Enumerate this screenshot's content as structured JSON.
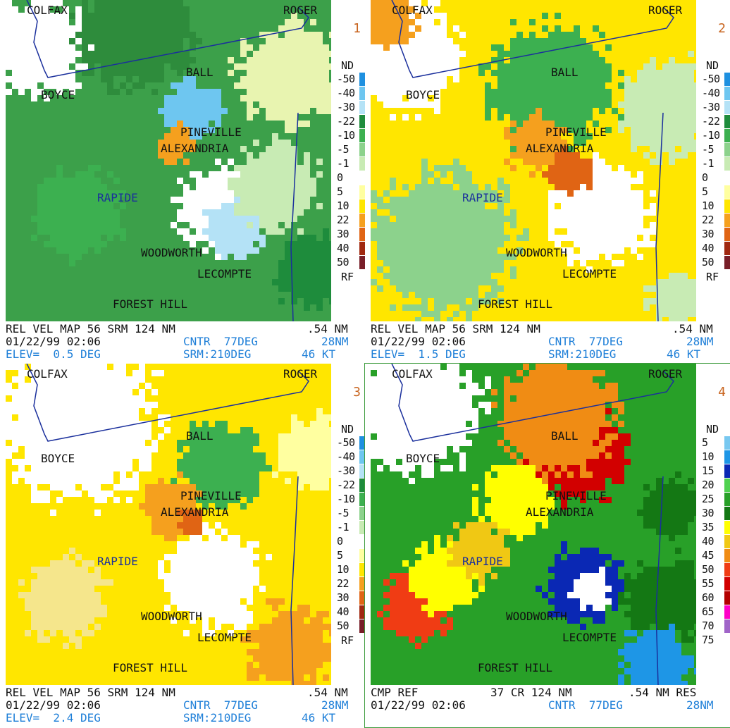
{
  "panels": [
    {
      "id": "1",
      "type": "velocity",
      "number": "1",
      "line1": {
        "a": "REL VEL MAP 56 SRM 124 NM",
        "b": ".54 NM"
      },
      "line2": {
        "a": "01/22/99 02:06",
        "b": "CNTR  77DEG",
        "c": "28NM"
      },
      "line3": {
        "a": "ELEV=  0.5 DEG",
        "b": "SRM:210DEG",
        "c": "46 KT"
      }
    },
    {
      "id": "2",
      "type": "velocity",
      "number": "2",
      "line1": {
        "a": "REL VEL MAP 56 SRM 124 NM",
        "b": ".54 NM"
      },
      "line2": {
        "a": "01/22/99 02:06",
        "b": "CNTR  77DEG",
        "c": "28NM"
      },
      "line3": {
        "a": "ELEV=  1.5 DEG",
        "b": "SRM:210DEG",
        "c": "46 KT"
      }
    },
    {
      "id": "3",
      "type": "velocity",
      "number": "3",
      "line1": {
        "a": "REL VEL MAP 56 SRM 124 NM",
        "b": ".54 NM"
      },
      "line2": {
        "a": "01/22/99 02:06",
        "b": "CNTR  77DEG",
        "c": "28NM"
      },
      "line3": {
        "a": "ELEV=  2.4 DEG",
        "b": "SRM:210DEG",
        "c": "46 KT"
      }
    },
    {
      "id": "4",
      "type": "reflectivity",
      "number": "4",
      "line1": {
        "a": "CMP REF",
        "b": "37 CR 124 NM",
        "c": ".54 NM RES"
      },
      "line2": {
        "a": "01/22/99 02:06",
        "b": "CNTR  77DEG",
        "c": "28NM"
      },
      "line3": null
    }
  ],
  "places": {
    "colfax": "COLFAX",
    "roger": "ROGER",
    "ball": "BALL",
    "boyce": "BOYCE",
    "pineville": "PINEVILLE",
    "alexandria": "ALEXANDRIA",
    "rapide": "RAPIDE",
    "woodworth": "WOODWORTH",
    "lecompte": "LECOMPTE",
    "forest_hill": "FOREST HILL"
  },
  "velocity_legend": {
    "head": "ND",
    "foot": "RF",
    "rows": [
      {
        "label": "-50",
        "color": "#1e90e0"
      },
      {
        "label": "-40",
        "color": "#6ec6f0"
      },
      {
        "label": "-30",
        "color": "#b4e2f6"
      },
      {
        "label": "-22",
        "color": "#1e8c3c"
      },
      {
        "label": "-10",
        "color": "#3cb050"
      },
      {
        "label": "-5",
        "color": "#8cd28c"
      },
      {
        "label": "-1",
        "color": "#c8ebb4"
      },
      {
        "label": "0",
        "color": "#ffffff"
      },
      {
        "label": "5",
        "color": "#ffffa0"
      },
      {
        "label": "10",
        "color": "#ffe600"
      },
      {
        "label": "22",
        "color": "#f5a01e"
      },
      {
        "label": "30",
        "color": "#e06414"
      },
      {
        "label": "40",
        "color": "#a02810"
      },
      {
        "label": "50",
        "color": "#781e28"
      }
    ]
  },
  "reflectivity_legend": {
    "head": "ND",
    "rows": [
      {
        "label": "5",
        "color": "#78c8f0"
      },
      {
        "label": "10",
        "color": "#1e96e6"
      },
      {
        "label": "15",
        "color": "#0a28b4"
      },
      {
        "label": "20",
        "color": "#50d250"
      },
      {
        "label": "25",
        "color": "#28a028"
      },
      {
        "label": "30",
        "color": "#147814"
      },
      {
        "label": "35",
        "color": "#ffff00"
      },
      {
        "label": "40",
        "color": "#f0c814"
      },
      {
        "label": "45",
        "color": "#f08c14"
      },
      {
        "label": "50",
        "color": "#f03c14"
      },
      {
        "label": "55",
        "color": "#d20000"
      },
      {
        "label": "60",
        "color": "#b40000"
      },
      {
        "label": "65",
        "color": "#ff00c8"
      },
      {
        "label": "70",
        "color": "#a064c8"
      },
      {
        "label": "75",
        "color": "#ffffff"
      }
    ]
  }
}
